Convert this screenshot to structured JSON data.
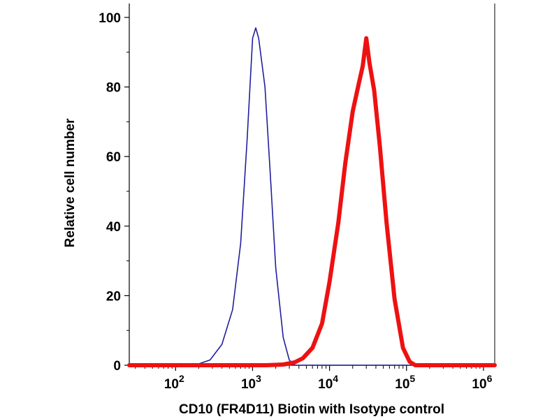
{
  "chart_data": {
    "type": "line",
    "title": "",
    "xlabel": "CD10 (FR4D11) Biotin with Isotype control",
    "ylabel": "Relative cell number",
    "x_scale": "log",
    "xlim": [
      25,
      1400000
    ],
    "ylim": [
      0,
      104
    ],
    "grid": false,
    "legend": "none",
    "x_ticks": [
      {
        "value": 100,
        "base": "10",
        "exp": "2"
      },
      {
        "value": 1000,
        "base": "10",
        "exp": "3"
      },
      {
        "value": 10000,
        "base": "10",
        "exp": "4"
      },
      {
        "value": 100000,
        "base": "10",
        "exp": "5"
      },
      {
        "value": 1000000,
        "base": "10",
        "exp": "6"
      }
    ],
    "y_ticks": [
      0,
      20,
      40,
      60,
      80,
      100
    ],
    "series": [
      {
        "color": "#1f1f9e",
        "stroke": "thin",
        "x": [
          25,
          150,
          200,
          280,
          400,
          550,
          700,
          850,
          1000,
          1100,
          1200,
          1450,
          1700,
          2000,
          2500,
          3000,
          3500,
          1400000
        ],
        "y": [
          0,
          0,
          0.4,
          1.5,
          6,
          16,
          35,
          65,
          94,
          97,
          94,
          80,
          55,
          28,
          8,
          1.5,
          0,
          0
        ]
      },
      {
        "color": "#ee1111",
        "stroke": "thick",
        "x": [
          25,
          1500,
          2500,
          3500,
          4500,
          6000,
          8000,
          10000,
          13000,
          16000,
          20000,
          24000,
          27000,
          30000,
          33000,
          38000,
          45000,
          55000,
          70000,
          90000,
          110000,
          130000,
          200000,
          1400000
        ],
        "y": [
          0,
          0,
          0.2,
          0.8,
          2,
          5,
          12,
          24,
          41,
          58,
          73,
          81,
          86,
          94,
          87,
          79,
          63,
          41,
          19,
          5,
          1,
          0,
          0,
          0
        ]
      }
    ]
  }
}
